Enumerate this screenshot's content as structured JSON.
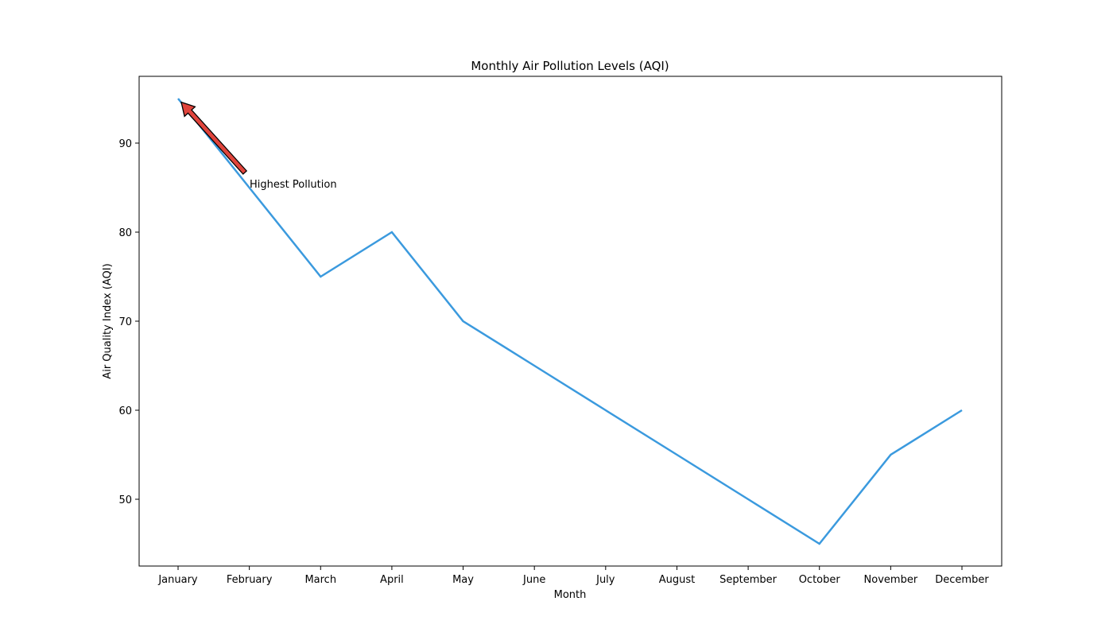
{
  "chart_data": {
    "type": "line",
    "title": "Monthly Air Pollution Levels (AQI)",
    "xlabel": "Month",
    "ylabel": "Air Quality Index (AQI)",
    "categories": [
      "January",
      "February",
      "March",
      "April",
      "May",
      "June",
      "July",
      "August",
      "September",
      "October",
      "November",
      "December"
    ],
    "series": [
      {
        "values": [
          95,
          85,
          75,
          80,
          70,
          65,
          60,
          55,
          50,
          45,
          55,
          60
        ],
        "color": "#3b9ade"
      }
    ],
    "ylim": [
      42.5,
      97.5
    ],
    "yticks": [
      50,
      60,
      70,
      80,
      90
    ],
    "grid": false,
    "annotation": {
      "text": "Highest Pollution",
      "target": {
        "category": "January",
        "value": 95
      },
      "arrow_color": "#e0443c"
    }
  }
}
